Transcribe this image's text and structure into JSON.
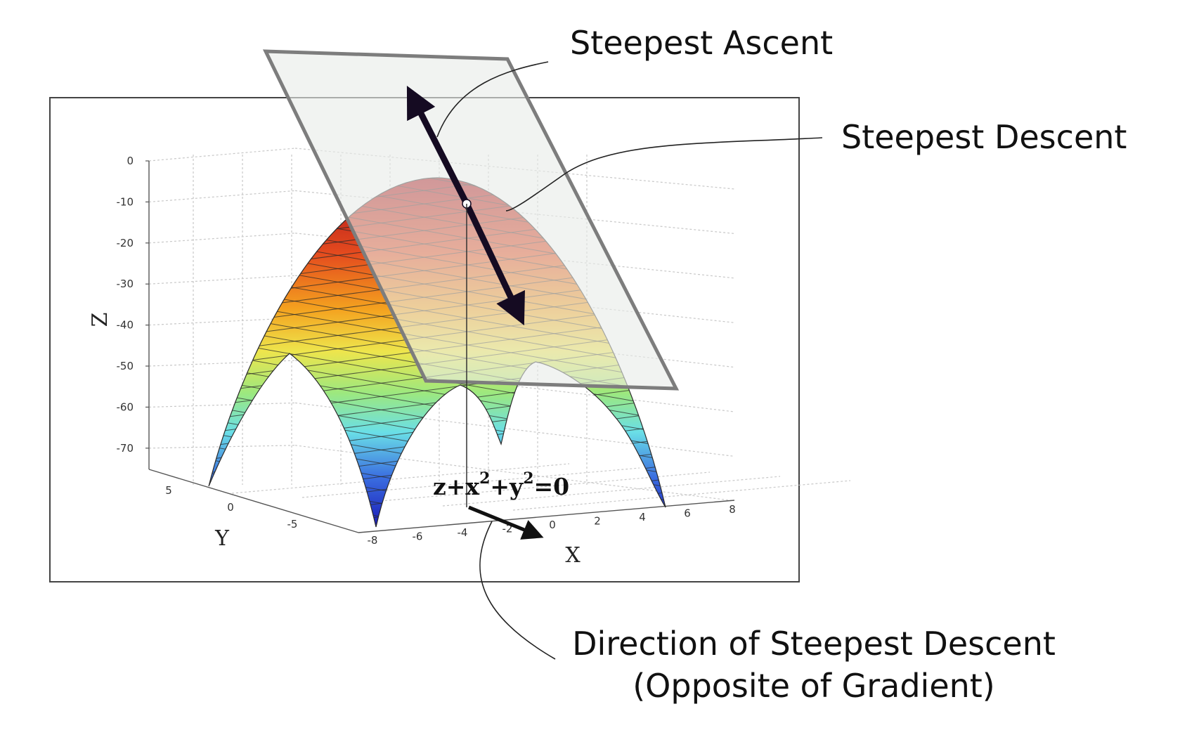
{
  "callouts": {
    "ascent": "Steepest Ascent",
    "descent": "Steepest Descent",
    "direction_line1": "Direction of Steepest Descent",
    "direction_line2": "(Opposite of Gradient)"
  },
  "plot": {
    "equation_base": [
      "z+x",
      "+y",
      "=0"
    ],
    "equation_exponent": "2",
    "axis_labels": {
      "x": "X",
      "y": "Y",
      "z": "Z"
    },
    "z_ticks": [
      "0",
      "-10",
      "-20",
      "-30",
      "-40",
      "-50",
      "-60",
      "-70"
    ],
    "x_ticks": [
      "-8",
      "-6",
      "-4",
      "-2",
      "0",
      "2",
      "4",
      "6",
      "8"
    ],
    "y_ticks": [
      "5",
      "0",
      "-5"
    ]
  },
  "colors": {
    "surface_top": "#b3101b",
    "surface_mid": "#f2e94a",
    "surface_low": "#6de0e8",
    "surface_bottom": "#1a1fb8",
    "tangent_plane": "#e9ece9",
    "arrow": "#150b22"
  }
}
